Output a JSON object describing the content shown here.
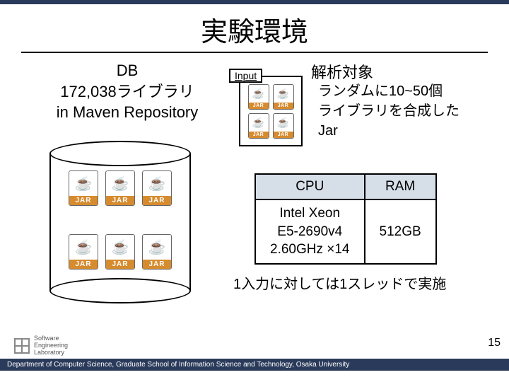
{
  "title": "実験環境",
  "db": {
    "line1": "DB",
    "line2": "172,038ライブラリ",
    "line3": "in Maven Repository",
    "jar_count": 6,
    "jar_label": "JAR"
  },
  "input_box": {
    "tag": "Input",
    "jar_count": 4,
    "jar_label": "JAR"
  },
  "analysis": {
    "title": "解析対象",
    "desc_line1": "ランダムに10~50個",
    "desc_line2": "ライブラリを合成した",
    "desc_line3": "Jar"
  },
  "spec_table": {
    "header_cpu": "CPU",
    "header_ram": "RAM",
    "cpu_line1": "Intel Xeon",
    "cpu_line2": "E5-2690v4",
    "cpu_line3": "2.60GHz ×14",
    "ram_value": "512GB"
  },
  "thread_note": "1入力に対しては1スレッドで実施",
  "page_number": "15",
  "footer": {
    "logo_line1": "Software",
    "logo_line2": "Engineering",
    "logo_line3": "Laboratory",
    "band": "Department of Computer Science, Graduate School of Information Science and Technology, Osaka University"
  },
  "colors": {
    "accent_dark": "#2a3a5a",
    "table_header_bg": "#d6dee8",
    "jar_label_bg": "#d68b2e",
    "java_cup": "#5b8ab3"
  }
}
